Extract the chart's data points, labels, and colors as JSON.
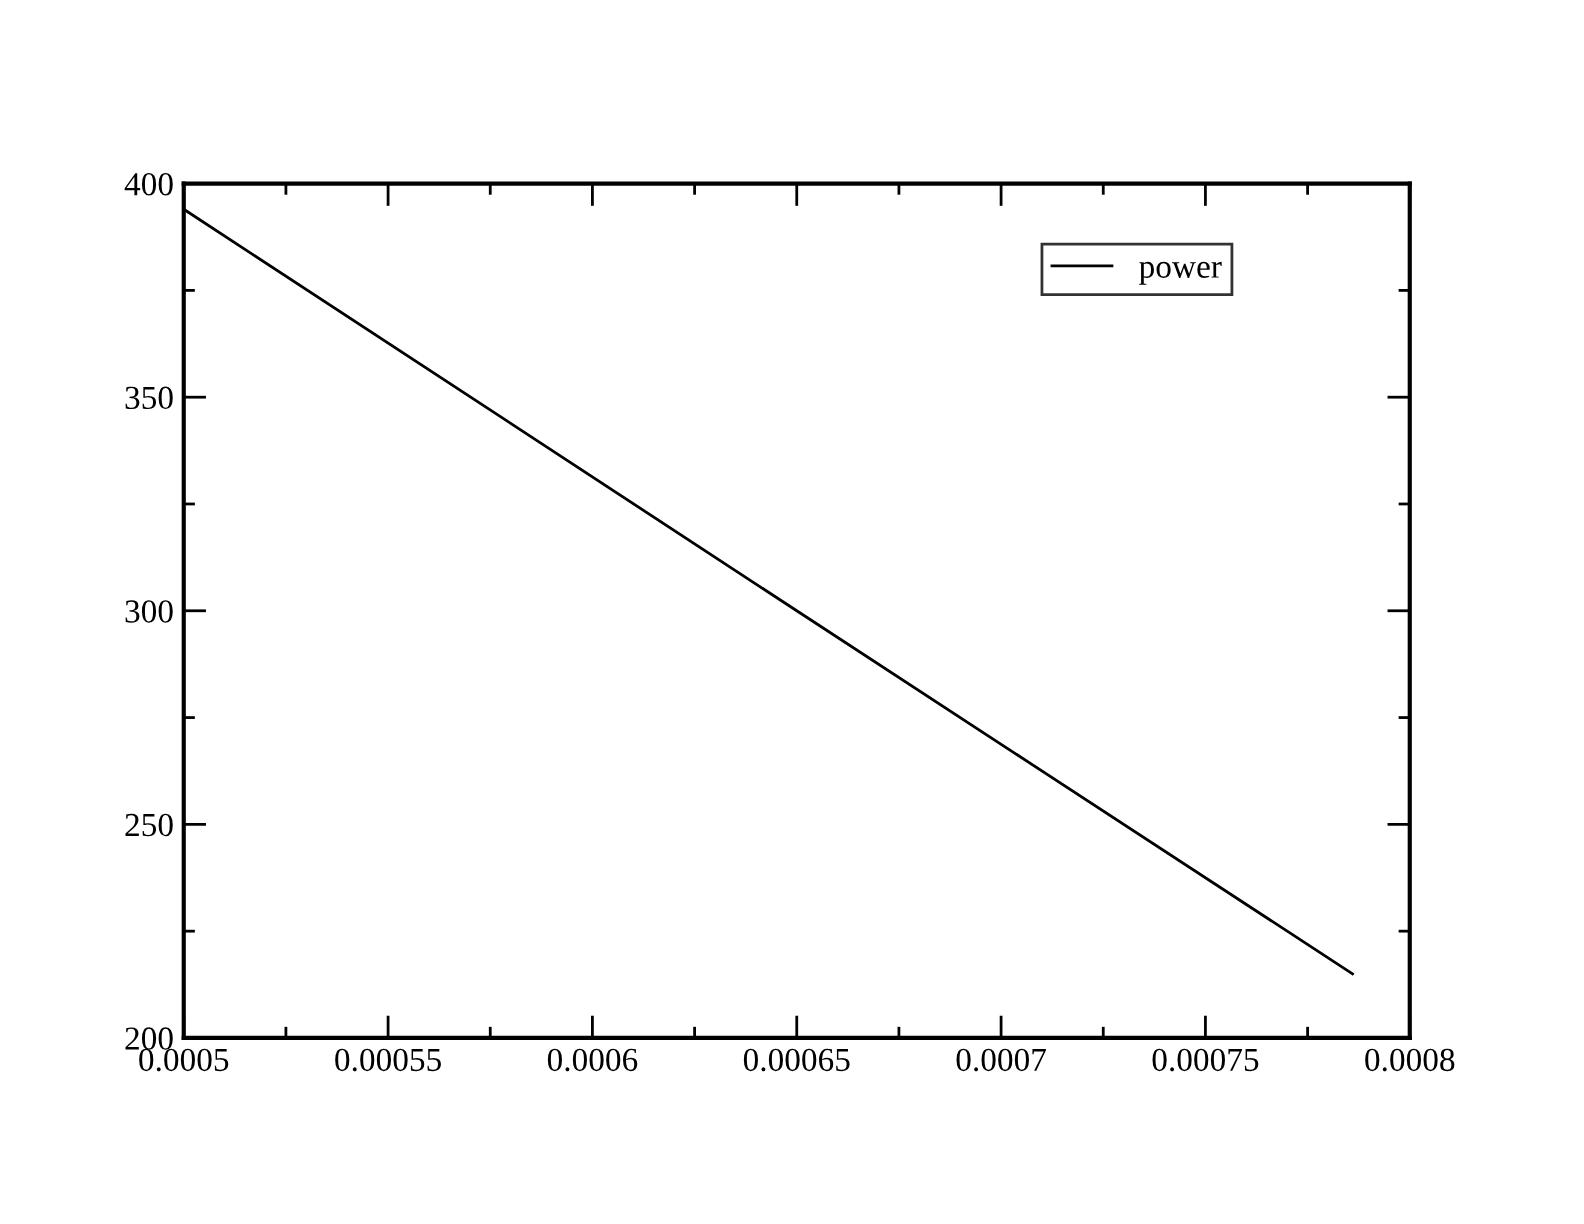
{
  "chart_data": {
    "type": "line",
    "x": [
      0.0005,
      0.00065,
      0.000786
    ],
    "series": [
      {
        "name": "power",
        "color": "#000000",
        "values": [
          394,
          300,
          215
        ]
      }
    ],
    "xlim": [
      0.0005,
      0.0008
    ],
    "xticks": [
      {
        "value": 0.0005,
        "label": "0.0005"
      },
      {
        "value": 0.000525,
        "label": null
      },
      {
        "value": 0.00055,
        "label": "0.00055"
      },
      {
        "value": 0.000575,
        "label": null
      },
      {
        "value": 0.0006,
        "label": "0.0006"
      },
      {
        "value": 0.000625,
        "label": null
      },
      {
        "value": 0.00065,
        "label": "0.00065"
      },
      {
        "value": 0.000675,
        "label": null
      },
      {
        "value": 0.0007,
        "label": "0.0007"
      },
      {
        "value": 0.000725,
        "label": null
      },
      {
        "value": 0.00075,
        "label": "0.00075"
      },
      {
        "value": 0.000775,
        "label": null
      },
      {
        "value": 0.0008,
        "label": "0.0008"
      }
    ],
    "ylim": [
      200,
      400
    ],
    "yticks": [
      200,
      {
        "value": 225,
        "label": null
      },
      250,
      {
        "value": 275,
        "label": null
      },
      300,
      {
        "value": 325,
        "label": null
      },
      350,
      {
        "value": 375,
        "label": null
      },
      400
    ],
    "legend": "top right",
    "grid": false,
    "marker": "none",
    "line_style": "solid"
  }
}
